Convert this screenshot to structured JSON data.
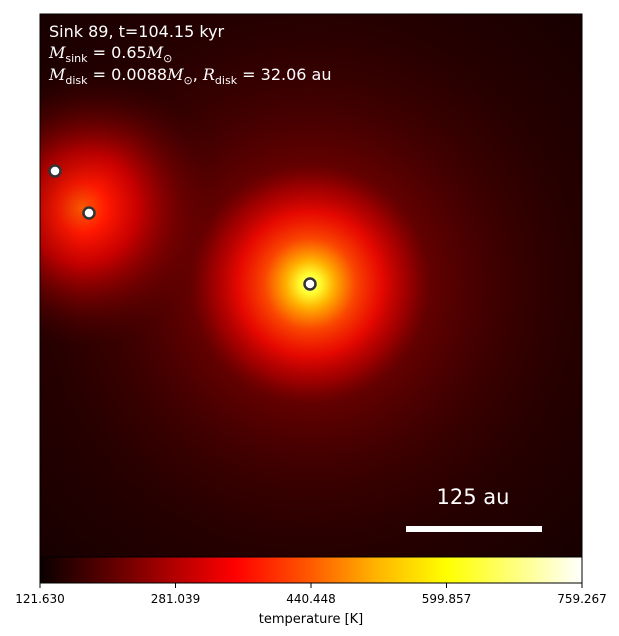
{
  "annotation": {
    "line1": "Sink 89, t=104.15 kyr",
    "line2": {
      "symbol": "M",
      "subscript": "sink",
      "value_text": " = 0.65",
      "unit_symbol": "M",
      "unit_subscript": "⊙"
    },
    "line3": {
      "symbol": "M",
      "subscript": "disk",
      "value_text": " = 0.0088",
      "unit_symbol": "M",
      "unit_subscript": "⊙",
      "separator": ", ",
      "r_symbol": "R",
      "r_subscript": "disk",
      "r_value_text": " = 32.06 au"
    }
  },
  "scale_bar": {
    "label": "125 au",
    "color": "#ffffff"
  },
  "colorbar": {
    "colormap": "hot",
    "label": "temperature [K]",
    "range": [
      121.63,
      759.267
    ],
    "tick_labels": [
      "121.630",
      "281.039",
      "440.448",
      "599.857",
      "759.267"
    ]
  },
  "sinks": [
    {
      "name": "sink-left-edge"
    },
    {
      "name": "sink-left"
    },
    {
      "name": "sink-center"
    }
  ],
  "colors": {
    "colormap_stops": [
      "#0a0000",
      "#5a0000",
      "#b40000",
      "#ff0000",
      "#ff5a00",
      "#ffb400",
      "#ffff00",
      "#ffff80",
      "#ffffff"
    ],
    "sink_marker_fill": "#ffffff",
    "sink_marker_edge": "#333333"
  }
}
